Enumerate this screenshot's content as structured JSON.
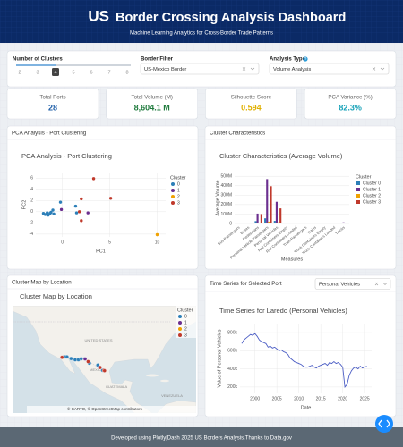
{
  "header": {
    "flag": "US",
    "title": "Border Crossing Analysis Dashboard",
    "subtitle": "Machine Learning Analytics for Cross-Border Trade Patterns"
  },
  "controls": {
    "clusters": {
      "label": "Number of Clusters",
      "marks": [
        2,
        3,
        4,
        5,
        6,
        7,
        8
      ],
      "value": 4
    },
    "border": {
      "label": "Border Filter",
      "value": "US-Mexico Border"
    },
    "analysis": {
      "label": "Analysis Type",
      "value": "Volume Analysis"
    }
  },
  "kpis": [
    {
      "label": "Total Ports",
      "value": "28",
      "color": "#1f5fa8"
    },
    {
      "label": "Total Volume (M)",
      "value": "8,604.1 M",
      "color": "#1e7a3c"
    },
    {
      "label": "Silhouette Score",
      "value": "0.594",
      "color": "#e0b000"
    },
    {
      "label": "PCA Variance (%)",
      "value": "82.3%",
      "color": "#17a2b8"
    }
  ],
  "panels": [
    "PCA Analysis - Port Clustering",
    "Cluster Characteristics",
    "Cluster Map by Location",
    "Time Series for Selected Port"
  ],
  "series_dropdown": "Personal Vehicles",
  "footer": "Developed using Plotly|Dash 2025 US Borders Analysis.Thanks to Data.gov",
  "chart_data": [
    {
      "type": "scatter",
      "title": "PCA Analysis - Port Clustering",
      "xlabel": "PC1",
      "ylabel": "PC2",
      "legend_title": "Cluster",
      "xlim": [
        -2.8,
        10.9
      ],
      "ylim": [
        -4.5,
        7
      ],
      "xticks": [
        0,
        5,
        10
      ],
      "yticks": [
        -4,
        -2,
        0,
        2,
        4,
        6
      ],
      "grid": true,
      "series": [
        {
          "name": "0",
          "color": "#2c7fb8",
          "x": [
            -2.0,
            -1.8,
            -1.6,
            -1.5,
            -1.3,
            -1.2,
            -1.0,
            -0.9,
            -0.2,
            1.4,
            1.5
          ],
          "values": [
            -0.3,
            -0.5,
            -0.2,
            -0.6,
            -0.3,
            -0.1,
            0.3,
            -0.4,
            1.7,
            1.0,
            -0.2
          ]
        },
        {
          "name": "1",
          "color": "#6b2f8f",
          "x": [
            -0.1,
            2.7
          ],
          "values": [
            0.4,
            -0.2
          ]
        },
        {
          "name": "2",
          "color": "#f0a202",
          "x": [
            10.0
          ],
          "values": [
            -4.1
          ]
        },
        {
          "name": "3",
          "color": "#c0392b",
          "x": [
            3.3,
            5.1,
            2.0,
            2.0,
            1.8
          ],
          "values": [
            5.9,
            2.4,
            2.3,
            -1.6,
            0.0
          ]
        }
      ]
    },
    {
      "type": "bar",
      "title": "Cluster Characteristics (Average Volume)",
      "xlabel": "Measures",
      "ylabel": "Average Volume",
      "legend_title": "Cluster",
      "categories": [
        "Bus Passengers",
        "Buses",
        "Pedestrians",
        "Personal Vehicle Passengers",
        "Personal Vehicles",
        "Rail Containers Empty",
        "Rail Containers Loaded",
        "Train Passengers",
        "Trains",
        "Truck Containers Empty",
        "Truck Containers Loaded",
        "Trucks"
      ],
      "ylim": [
        0,
        540000000
      ],
      "yticks": [
        0,
        {
          "value": 100000000,
          "label": "100M"
        },
        {
          "value": 200000000,
          "label": "200M"
        },
        {
          "value": 300000000,
          "label": "300M"
        },
        {
          "value": 400000000,
          "label": "400M"
        },
        {
          "value": 500000000,
          "label": "500M"
        }
      ],
      "grid": true,
      "series": [
        {
          "name": "Cluster 0",
          "color": "#2c7fb8",
          "values": [
            3000000,
            100000,
            25000000,
            55000000,
            28000000,
            200000,
            300000,
            100000,
            10000,
            1000000,
            2000000,
            3000000
          ]
        },
        {
          "name": "Cluster 1",
          "color": "#6b2f8f",
          "values": [
            8000000,
            300000,
            105000000,
            470000000,
            230000000,
            500000,
            1000000,
            200000,
            50000,
            4000000,
            8000000,
            12000000
          ]
        },
        {
          "name": "Cluster 2",
          "color": "#f0a202",
          "values": [
            1000000,
            50000,
            8000000,
            20000000,
            12000000,
            100000,
            100000,
            0,
            0,
            500000,
            1000000,
            1000000
          ]
        },
        {
          "name": "Cluster 3",
          "color": "#c0392b",
          "values": [
            6000000,
            200000,
            100000000,
            395000000,
            160000000,
            400000,
            800000,
            100000,
            30000,
            3000000,
            6000000,
            9000000
          ]
        }
      ]
    },
    {
      "type": "map",
      "title": "Cluster Map by Location",
      "legend_title": "Cluster",
      "labels": [
        "UNITED STATES",
        "MEXICO",
        "GUATEMALA",
        "VENEZUELA"
      ],
      "attribution": "© CARTO, © OpenStreetMap contributors",
      "series": [
        {
          "name": "0",
          "color": "#2c7fb8",
          "lon": [
            -116.5,
            -115.5,
            -114.8,
            -112.9,
            -111.0,
            -109.5,
            -108.2,
            -106.5,
            -104.4,
            -100.5,
            -98.3
          ],
          "lat": [
            32.6,
            32.7,
            32.7,
            31.9,
            31.3,
            31.3,
            31.8,
            31.8,
            29.6,
            28.7,
            26.1
          ]
        },
        {
          "name": "1",
          "color": "#6b2f8f",
          "lon": [
            -106.4,
            -99.7
          ],
          "lat": [
            31.7,
            27.6
          ]
        },
        {
          "name": "2",
          "color": "#f0a202",
          "lon": [
            -117.0
          ],
          "lat": [
            32.5
          ]
        },
        {
          "name": "3",
          "color": "#c0392b",
          "lon": [
            -117.1,
            -99.5,
            -97.7,
            -97.4,
            -105.0
          ],
          "lat": [
            32.5,
            27.5,
            26.1,
            25.9,
            30.4
          ]
        }
      ]
    },
    {
      "type": "line",
      "title": "Time Series for Laredo (Personal Vehicles)",
      "xlabel": "Date",
      "ylabel": "Value of Personal Vehicles",
      "color": "#4a5cc4",
      "x": [
        1997,
        1997.5,
        1998,
        1998.5,
        1999,
        1999.5,
        2000,
        2000.5,
        2001,
        2001.5,
        2002,
        2002.5,
        2003,
        2003.5,
        2004,
        2004.5,
        2005,
        2005.5,
        2006,
        2006.5,
        2007,
        2007.5,
        2008,
        2008.5,
        2009,
        2009.5,
        2010,
        2010.5,
        2011,
        2011.5,
        2012,
        2012.5,
        2013,
        2013.5,
        2014,
        2014.5,
        2015,
        2015.5,
        2016,
        2016.5,
        2017,
        2017.5,
        2018,
        2018.5,
        2019,
        2019.5,
        2020,
        2020.5,
        2021,
        2021.5,
        2022,
        2022.5,
        2023,
        2023.5,
        2024,
        2024.5,
        2025,
        2025.5
      ],
      "values": [
        680000,
        720000,
        740000,
        760000,
        780000,
        770000,
        790000,
        760000,
        720000,
        700000,
        690000,
        680000,
        640000,
        650000,
        630000,
        640000,
        620000,
        600000,
        610000,
        590000,
        580000,
        560000,
        520000,
        500000,
        480000,
        470000,
        460000,
        450000,
        430000,
        420000,
        420000,
        430000,
        440000,
        420000,
        410000,
        430000,
        440000,
        450000,
        460000,
        440000,
        470000,
        460000,
        480000,
        460000,
        470000,
        450000,
        420000,
        200000,
        230000,
        330000,
        380000,
        410000,
        420000,
        400000,
        430000,
        410000,
        420000,
        430000
      ],
      "xlim": [
        1996.6,
        2026.6
      ],
      "ylim": [
        130000,
        900000
      ],
      "xticks": [
        2000,
        2005,
        2010,
        2015,
        2020,
        2025
      ],
      "yticks": [
        {
          "value": 200000,
          "label": "200k"
        },
        {
          "value": 400000,
          "label": "400k"
        },
        {
          "value": 600000,
          "label": "600k"
        },
        {
          "value": 800000,
          "label": "800k"
        }
      ],
      "grid": true
    }
  ]
}
